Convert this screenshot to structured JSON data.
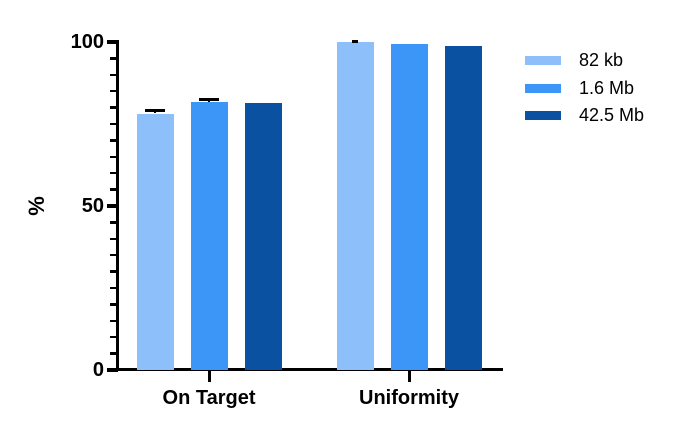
{
  "chart_data": {
    "type": "bar",
    "title": "",
    "categories": [
      "On Target",
      "Uniformity"
    ],
    "series": [
      {
        "name": "82 kb",
        "color": "#8DC0FB",
        "values": [
          78.2,
          99.9
        ],
        "errors": [
          0.9,
          0.3
        ]
      },
      {
        "name": "1.6 Mb",
        "color": "#3B96F7",
        "values": [
          81.6,
          99.3
        ],
        "errors": [
          0.9,
          0
        ]
      },
      {
        "name": "42.5 Mb",
        "color": "#0A51A1",
        "values": [
          81.4,
          98.7
        ],
        "errors": [
          0,
          0
        ]
      }
    ],
    "xlabel": "",
    "ylabel": "%",
    "ylim": [
      0,
      100
    ],
    "yticks": [
      0,
      50,
      100
    ],
    "y_minor_tick_interval": 5,
    "grid": false,
    "legend_position": "right",
    "axis_color": "#000000",
    "error_bar_color": "#000000",
    "background_color": "#ffffff"
  }
}
